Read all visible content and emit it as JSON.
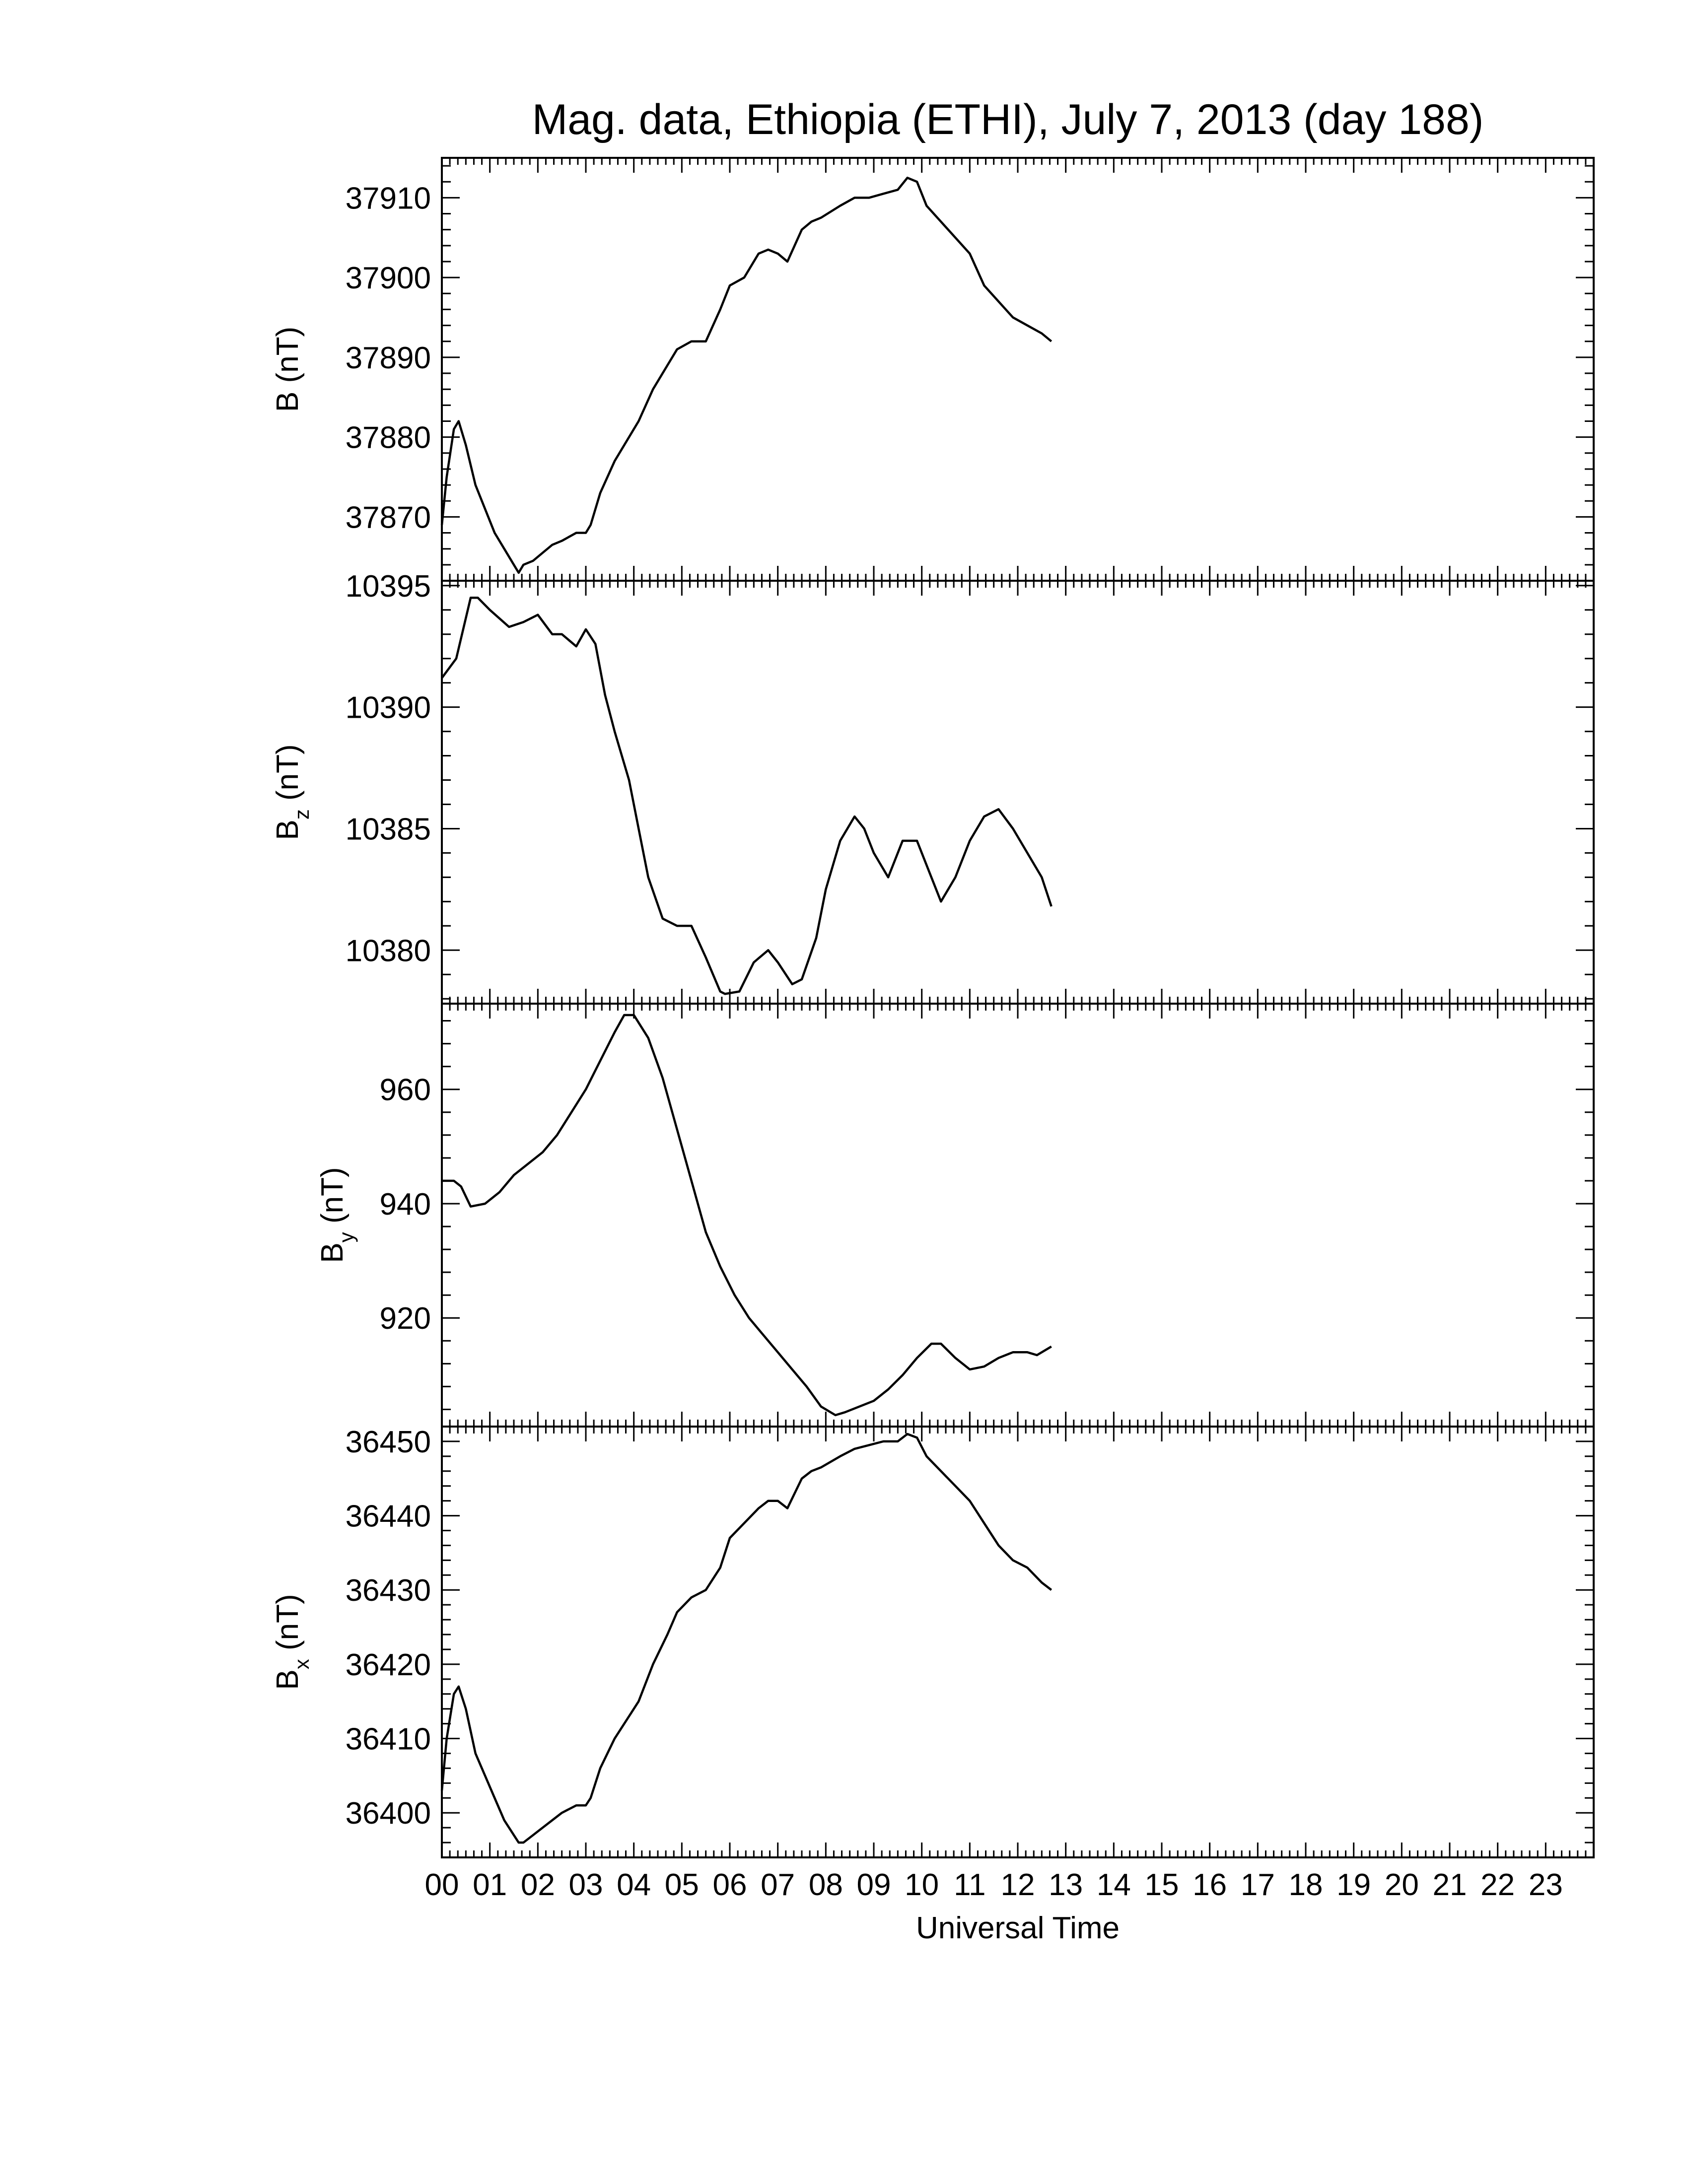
{
  "title": "Mag. data, Ethiopia (ETHI), July 7, 2013 (day 188)",
  "xlabel": "Universal Time",
  "x_tick_labels": [
    "00",
    "01",
    "02",
    "03",
    "04",
    "05",
    "06",
    "07",
    "08",
    "09",
    "10",
    "11",
    "12",
    "13",
    "14",
    "15",
    "16",
    "17",
    "18",
    "19",
    "20",
    "21",
    "22",
    "23"
  ],
  "chart_data": [
    {
      "type": "line",
      "panel": "B",
      "ylabel_main": "B",
      "ylabel_sub": "",
      "ylabel_unit": "(nT)",
      "xlim": [
        0,
        24
      ],
      "ylim": [
        37862,
        37915
      ],
      "y_ticks": [
        37870,
        37880,
        37890,
        37900,
        37910
      ],
      "series": [
        {
          "x": [
            0,
            0.1,
            0.25,
            0.35,
            0.5,
            0.7,
            0.9,
            1.1,
            1.3,
            1.5,
            1.6,
            1.7,
            1.9,
            2.1,
            2.3,
            2.5,
            2.8,
            3.0,
            3.1,
            3.3,
            3.6,
            3.9,
            4.1,
            4.4,
            4.7,
            4.9,
            5.2,
            5.5,
            5.8,
            6.0,
            6.3,
            6.6,
            6.8,
            7.0,
            7.2,
            7.5,
            7.7,
            7.9,
            8.3,
            8.6,
            8.9,
            9.2,
            9.5,
            9.7,
            9.9,
            10.1,
            10.4,
            10.7,
            11.0,
            11.3,
            11.6,
            11.9,
            12.2,
            12.5,
            12.7
          ],
          "y": [
            37869,
            37875,
            37881,
            37882,
            37879,
            37874,
            37871,
            37868,
            37866,
            37864,
            37863,
            37864,
            37864.5,
            37865.5,
            37866.5,
            37867,
            37868,
            37868,
            37869,
            37873,
            37877,
            37880,
            37882,
            37886,
            37889,
            37891,
            37892,
            37892,
            37896,
            37899,
            37900,
            37903,
            37903.5,
            37903,
            37902,
            37906,
            37907,
            37907.5,
            37909,
            37910,
            37910,
            37910.5,
            37911,
            37912.5,
            37912,
            37909,
            37907,
            37905,
            37903,
            37899,
            37897,
            37895,
            37894,
            37893,
            37892
          ]
        }
      ]
    },
    {
      "type": "line",
      "panel": "Bz",
      "ylabel_main": "B",
      "ylabel_sub": "z",
      "ylabel_unit": "(nT)",
      "xlim": [
        0,
        24
      ],
      "ylim": [
        10377.8,
        10395.2
      ],
      "y_ticks": [
        10380,
        10385,
        10390,
        10395
      ],
      "series": [
        {
          "x": [
            0,
            0.3,
            0.6,
            0.75,
            1.0,
            1.4,
            1.7,
            2.0,
            2.3,
            2.5,
            2.8,
            3.0,
            3.2,
            3.4,
            3.6,
            3.9,
            4.1,
            4.3,
            4.6,
            4.9,
            5.2,
            5.5,
            5.8,
            5.9,
            6.2,
            6.5,
            6.8,
            7.0,
            7.3,
            7.5,
            7.8,
            8.0,
            8.3,
            8.6,
            8.8,
            9.0,
            9.3,
            9.6,
            9.9,
            10.2,
            10.4,
            10.7,
            11.0,
            11.3,
            11.6,
            11.9,
            12.2,
            12.5,
            12.7
          ],
          "y": [
            10391.2,
            10392,
            10394.5,
            10394.5,
            10394,
            10393.3,
            10393.5,
            10393.8,
            10393,
            10393,
            10392.5,
            10393.2,
            10392.6,
            10390.5,
            10389,
            10387,
            10385,
            10383,
            10381.3,
            10381,
            10381,
            10379.7,
            10378.3,
            10378.2,
            10378.3,
            10379.5,
            10380,
            10379.5,
            10378.6,
            10378.8,
            10380.5,
            10382.5,
            10384.5,
            10385.5,
            10385,
            10384,
            10383,
            10384.5,
            10384.5,
            10383,
            10382,
            10383,
            10384.5,
            10385.5,
            10385.8,
            10385,
            10384,
            10383,
            10381.8
          ]
        }
      ]
    },
    {
      "type": "line",
      "panel": "By",
      "ylabel_main": "B",
      "ylabel_sub": "y",
      "ylabel_unit": "(nT)",
      "xlim": [
        0,
        24
      ],
      "ylim": [
        901,
        975
      ],
      "y_ticks": [
        920,
        940,
        960
      ],
      "series": [
        {
          "x": [
            0,
            0.25,
            0.4,
            0.6,
            0.9,
            1.2,
            1.5,
            1.8,
            2.1,
            2.4,
            2.7,
            3.0,
            3.3,
            3.6,
            3.8,
            4.0,
            4.3,
            4.6,
            4.9,
            5.2,
            5.5,
            5.8,
            6.1,
            6.4,
            6.7,
            7.0,
            7.3,
            7.6,
            7.9,
            8.2,
            8.4,
            8.7,
            9.0,
            9.3,
            9.6,
            9.9,
            10.2,
            10.4,
            10.7,
            11.0,
            11.3,
            11.6,
            11.9,
            12.2,
            12.4,
            12.7
          ],
          "y": [
            944,
            944,
            943,
            939.5,
            940,
            942,
            945,
            947,
            949,
            952,
            956,
            960,
            965,
            970,
            973,
            973,
            969,
            962,
            953,
            944,
            935,
            929,
            924,
            920,
            917,
            914,
            911,
            908,
            904.5,
            903,
            903.5,
            904.5,
            905.5,
            907.5,
            910,
            913,
            915.5,
            915.5,
            913,
            911,
            911.5,
            913,
            914,
            914,
            913.5,
            915
          ]
        }
      ]
    },
    {
      "type": "line",
      "panel": "Bx",
      "ylabel_main": "B",
      "ylabel_sub": "x",
      "ylabel_unit": "(nT)",
      "xlim": [
        0,
        24
      ],
      "ylim": [
        36394,
        36452
      ],
      "y_ticks": [
        36400,
        36410,
        36420,
        36430,
        36440,
        36450
      ],
      "series": [
        {
          "x": [
            0,
            0.1,
            0.25,
            0.35,
            0.5,
            0.7,
            0.9,
            1.1,
            1.3,
            1.5,
            1.6,
            1.7,
            1.9,
            2.1,
            2.3,
            2.5,
            2.8,
            3.0,
            3.1,
            3.3,
            3.6,
            3.9,
            4.1,
            4.4,
            4.7,
            4.9,
            5.2,
            5.5,
            5.8,
            6.0,
            6.3,
            6.6,
            6.8,
            7.0,
            7.2,
            7.5,
            7.7,
            7.9,
            8.3,
            8.6,
            8.9,
            9.2,
            9.5,
            9.7,
            9.9,
            10.1,
            10.4,
            10.7,
            11.0,
            11.3,
            11.6,
            11.9,
            12.2,
            12.5,
            12.7
          ],
          "y": [
            36403,
            36410,
            36416,
            36417,
            36414,
            36408,
            36405,
            36402,
            36399,
            36397,
            36396,
            36396,
            36397,
            36398,
            36399,
            36400,
            36401,
            36401,
            36402,
            36406,
            36410,
            36413,
            36415,
            36420,
            36424,
            36427,
            36429,
            36430,
            36433,
            36437,
            36439,
            36441,
            36442,
            36442,
            36441,
            36445,
            36446,
            36446.5,
            36448,
            36449,
            36449.5,
            36450,
            36450,
            36451,
            36450.5,
            36448,
            36446,
            36444,
            36442,
            36439,
            36436,
            36434,
            36433,
            36431,
            36430
          ]
        }
      ]
    }
  ]
}
